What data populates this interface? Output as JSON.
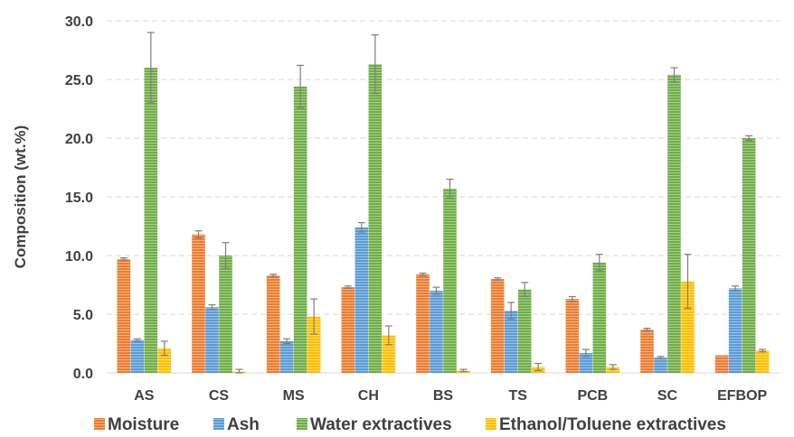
{
  "chart_data": {
    "type": "bar",
    "title": "",
    "xlabel": "",
    "ylabel": "Composition (wt.%)",
    "ylim": [
      0,
      30
    ],
    "yticks": [
      "0.0",
      "5.0",
      "10.0",
      "15.0",
      "20.0",
      "25.0",
      "30.0"
    ],
    "grid": true,
    "legend_position": "bottom",
    "categories": [
      "AS",
      "CS",
      "MS",
      "CH",
      "BS",
      "TS",
      "PCB",
      "SC",
      "EFBOP"
    ],
    "series": [
      {
        "name": "Moisture",
        "color": "#ed7d31",
        "values": [
          9.7,
          11.8,
          8.3,
          7.3,
          8.4,
          8.0,
          6.3,
          3.7,
          1.5
        ],
        "errors": [
          0.1,
          0.3,
          0.1,
          0.1,
          0.1,
          0.1,
          0.2,
          0.1,
          0.0
        ]
      },
      {
        "name": "Ash",
        "color": "#5b9bd5",
        "values": [
          2.8,
          5.6,
          2.7,
          12.4,
          7.0,
          5.3,
          1.7,
          1.3,
          7.2
        ],
        "errors": [
          0.1,
          0.2,
          0.2,
          0.4,
          0.3,
          0.7,
          0.3,
          0.1,
          0.2
        ]
      },
      {
        "name": "Water extractives",
        "color": "#70ad47",
        "values": [
          26.0,
          10.0,
          24.4,
          26.3,
          15.7,
          7.1,
          9.4,
          25.4,
          20.0
        ],
        "errors": [
          3.0,
          1.1,
          1.8,
          2.5,
          0.8,
          0.6,
          0.7,
          0.6,
          0.2
        ]
      },
      {
        "name": "Ethanol/Toluene extractives",
        "color": "#ffc000",
        "values": [
          2.1,
          0.1,
          4.8,
          3.2,
          0.2,
          0.5,
          0.5,
          7.8,
          1.9
        ],
        "errors": [
          0.6,
          0.2,
          1.5,
          0.8,
          0.1,
          0.3,
          0.2,
          2.3,
          0.1
        ]
      }
    ]
  }
}
